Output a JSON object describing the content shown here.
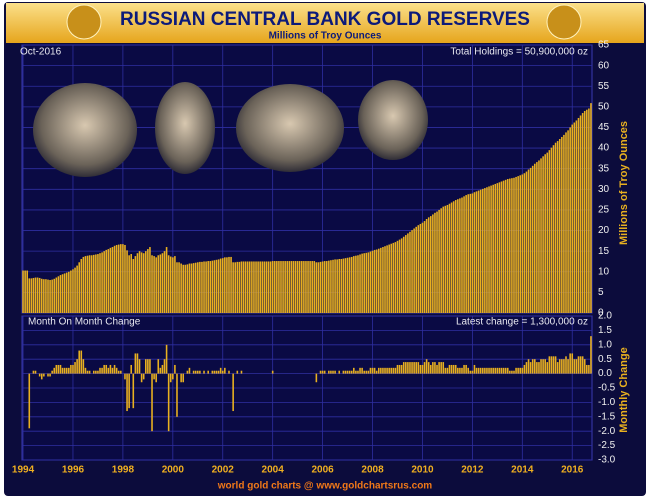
{
  "chart_data": [
    {
      "type": "bar",
      "title": "RUSSIAN CENTRAL BANK GOLD RESERVES",
      "subtitle": "Millions of Troy Ounces",
      "y_label": "Millions of Troy Ounces",
      "date_note": "Oct-2016",
      "total_note": "Total Holdings = 50,900,000 oz",
      "color": "#e8b020",
      "grid": true,
      "categories": [
        "1994",
        null,
        null,
        null,
        null,
        null,
        null,
        null,
        null,
        null,
        null,
        null,
        null,
        null,
        null,
        null,
        null,
        null,
        null,
        null,
        null,
        null,
        null,
        null,
        "1996",
        null,
        null,
        null,
        null,
        null,
        null,
        null,
        null,
        null,
        null,
        null,
        null,
        null,
        null,
        null,
        null,
        null,
        null,
        null,
        null,
        null,
        null,
        null,
        "1998",
        null,
        null,
        null,
        null,
        null,
        null,
        null,
        null,
        null,
        null,
        null,
        null,
        null,
        null,
        null,
        null,
        null,
        null,
        null,
        null,
        null,
        null,
        null,
        "2000",
        null,
        null,
        null,
        null,
        null,
        null,
        null,
        null,
        null,
        null,
        null,
        null,
        null,
        null,
        null,
        null,
        null,
        null,
        null,
        null,
        null,
        null,
        null,
        "2002",
        null,
        null,
        null,
        null,
        null,
        null,
        null,
        null,
        null,
        null,
        null,
        null,
        null,
        null,
        null,
        null,
        null,
        null,
        null,
        null,
        null,
        null,
        null,
        "2004",
        null,
        null,
        null,
        null,
        null,
        null,
        null,
        null,
        null,
        null,
        null,
        null,
        null,
        null,
        null,
        null,
        null,
        null,
        null,
        null,
        null,
        null,
        null,
        "2006",
        null,
        null,
        null,
        null,
        null,
        null,
        null,
        null,
        null,
        null,
        null,
        null,
        null,
        null,
        null,
        null,
        null,
        null,
        null,
        null,
        null,
        null,
        null,
        "2008",
        null,
        null,
        null,
        null,
        null,
        null,
        null,
        null,
        null,
        null,
        null,
        null,
        null,
        null,
        null,
        null,
        null,
        null,
        null,
        null,
        null,
        null,
        null,
        "2010",
        null,
        null,
        null,
        null,
        null,
        null,
        null,
        null,
        null,
        null,
        null,
        null,
        null,
        null,
        null,
        null,
        null,
        null,
        null,
        null,
        null,
        null,
        null,
        "2012",
        null,
        null,
        null,
        null,
        null,
        null,
        null,
        null,
        null,
        null,
        null,
        null,
        null,
        null,
        null,
        null,
        null,
        null,
        null,
        null,
        null,
        null,
        null,
        "2014",
        null,
        null,
        null,
        null,
        null,
        null,
        null,
        null,
        null,
        null,
        null,
        null,
        null,
        null,
        null,
        null,
        null,
        null,
        null,
        null,
        null,
        null,
        null,
        "2016",
        null,
        null,
        null,
        null,
        null,
        null,
        null,
        null,
        null
      ],
      "values": [
        10.3,
        10.3,
        10.3,
        8.4,
        8.4,
        8.5,
        8.6,
        8.6,
        8.5,
        8.3,
        8.2,
        8.2,
        8.1,
        8.0,
        8.1,
        8.3,
        8.6,
        8.9,
        9.2,
        9.4,
        9.6,
        9.8,
        10.0,
        10.3,
        10.6,
        11.0,
        11.5,
        12.3,
        13.1,
        13.6,
        13.8,
        13.9,
        14.0,
        14.0,
        14.1,
        14.2,
        14.3,
        14.5,
        14.7,
        15.0,
        15.3,
        15.5,
        15.8,
        16.0,
        16.3,
        16.5,
        16.6,
        16.7,
        16.7,
        16.5,
        15.2,
        14.0,
        14.3,
        13.1,
        13.8,
        14.5,
        15.0,
        14.7,
        14.5,
        15.0,
        15.5,
        16.0,
        14.0,
        13.8,
        13.5,
        14.0,
        14.2,
        14.5,
        15.0,
        16.0,
        14.0,
        13.7,
        13.5,
        13.8,
        12.3,
        12.3,
        12.0,
        11.7,
        11.7,
        11.8,
        12.0,
        12.0,
        12.1,
        12.2,
        12.3,
        12.4,
        12.4,
        12.5,
        12.5,
        12.6,
        12.6,
        12.7,
        12.8,
        12.9,
        13.0,
        13.2,
        13.3,
        13.5,
        13.5,
        13.6,
        13.6,
        12.3,
        12.3,
        12.4,
        12.4,
        12.5,
        12.5,
        12.5,
        12.5,
        12.5,
        12.5,
        12.5,
        12.5,
        12.5,
        12.5,
        12.5,
        12.5,
        12.5,
        12.5,
        12.5,
        12.6,
        12.6,
        12.6,
        12.6,
        12.6,
        12.6,
        12.6,
        12.6,
        12.6,
        12.6,
        12.6,
        12.6,
        12.6,
        12.6,
        12.6,
        12.6,
        12.6,
        12.6,
        12.6,
        12.6,
        12.6,
        12.3,
        12.3,
        12.4,
        12.5,
        12.6,
        12.6,
        12.7,
        12.8,
        12.9,
        13.0,
        13.0,
        13.1,
        13.1,
        13.2,
        13.3,
        13.4,
        13.5,
        13.6,
        13.8,
        13.9,
        14.0,
        14.2,
        14.4,
        14.5,
        14.6,
        14.7,
        14.9,
        15.1,
        15.3,
        15.4,
        15.6,
        15.8,
        16.0,
        16.2,
        16.4,
        16.6,
        16.8,
        17.0,
        17.2,
        17.5,
        17.8,
        18.1,
        18.5,
        18.9,
        19.3,
        19.7,
        20.1,
        20.5,
        20.9,
        21.3,
        21.6,
        21.9,
        22.3,
        22.8,
        23.2,
        23.5,
        23.9,
        24.3,
        24.6,
        25.0,
        25.4,
        25.8,
        26.0,
        26.2,
        26.5,
        26.8,
        27.1,
        27.4,
        27.6,
        27.8,
        28.0,
        28.3,
        28.6,
        28.8,
        28.9,
        29.0,
        29.3,
        29.5,
        29.7,
        29.9,
        30.1,
        30.3,
        30.5,
        30.7,
        30.9,
        31.1,
        31.3,
        31.5,
        31.7,
        31.9,
        32.1,
        32.3,
        32.5,
        32.6,
        32.7,
        32.8,
        33.0,
        33.2,
        33.4,
        33.6,
        33.9,
        34.3,
        34.8,
        35.2,
        35.7,
        36.2,
        36.6,
        37.0,
        37.5,
        38.0,
        38.5,
        38.9,
        39.5,
        40.1,
        40.7,
        41.3,
        41.7,
        42.2,
        42.7,
        43.2,
        43.8,
        44.3,
        45.0,
        45.7,
        46.2,
        46.7,
        47.3,
        47.9,
        48.5,
        49.0,
        49.3,
        49.6,
        50.9
      ],
      "ylim": [
        0,
        65
      ],
      "yticks": [
        0,
        5,
        10,
        15,
        20,
        25,
        30,
        35,
        40,
        45,
        50,
        55,
        60,
        65
      ]
    },
    {
      "type": "bar",
      "title": "Month On Month Change",
      "total_note": "Latest change = 1,300,000 oz",
      "y_label": "Monthly Change",
      "color": "#e8b020",
      "grid": true,
      "values": [
        0,
        0,
        0,
        -1.9,
        0,
        0.1,
        0.1,
        0,
        -0.1,
        -0.2,
        -0.1,
        0,
        -0.1,
        -0.1,
        0.1,
        0.2,
        0.3,
        0.3,
        0.3,
        0.2,
        0.2,
        0.2,
        0.2,
        0.3,
        0.3,
        0.4,
        0.5,
        0.8,
        0.8,
        0.5,
        0.2,
        0.1,
        0.1,
        0,
        0.1,
        0.1,
        0.1,
        0.2,
        0.2,
        0.3,
        0.3,
        0.2,
        0.3,
        0.2,
        0.3,
        0.2,
        0.1,
        0.1,
        0,
        -0.2,
        -1.3,
        -1.2,
        0.3,
        -1.2,
        0.7,
        0.7,
        0.5,
        -0.3,
        -0.2,
        0.5,
        0.5,
        0.5,
        -2.0,
        -0.2,
        -0.3,
        0.5,
        0.2,
        0.3,
        0.5,
        1.0,
        -2.0,
        -0.3,
        -0.2,
        0.3,
        -1.5,
        0,
        -0.3,
        -0.3,
        0,
        0.1,
        0.2,
        0,
        0.1,
        0.1,
        0.1,
        0.1,
        0,
        0.1,
        0,
        0.1,
        0,
        0.1,
        0.1,
        0.1,
        0.1,
        0.2,
        0.1,
        0.2,
        0,
        0.1,
        0,
        -1.3,
        0,
        0.1,
        0,
        0.1,
        0,
        0,
        0,
        0,
        0,
        0,
        0,
        0,
        0,
        0,
        0,
        0,
        0,
        0,
        0.1,
        0,
        0,
        0,
        0,
        0,
        0,
        0,
        0,
        0,
        0,
        0,
        0,
        0,
        0,
        0,
        0,
        0,
        0,
        0,
        0,
        -0.3,
        0,
        0.1,
        0.1,
        0.1,
        0,
        0.1,
        0.1,
        0.1,
        0.1,
        0,
        0.1,
        0,
        0.1,
        0.1,
        0.1,
        0.1,
        0.1,
        0.2,
        0.1,
        0.1,
        0.2,
        0.2,
        0.1,
        0.1,
        0.1,
        0.2,
        0.2,
        0.2,
        0.1,
        0.2,
        0.2,
        0.2,
        0.2,
        0.2,
        0.2,
        0.2,
        0.2,
        0.2,
        0.3,
        0.3,
        0.3,
        0.4,
        0.4,
        0.4,
        0.4,
        0.4,
        0.4,
        0.4,
        0.4,
        0.3,
        0.3,
        0.4,
        0.5,
        0.4,
        0.3,
        0.4,
        0.4,
        0.3,
        0.4,
        0.4,
        0.4,
        0.2,
        0.2,
        0.3,
        0.3,
        0.3,
        0.3,
        0.2,
        0.2,
        0.2,
        0.3,
        0.3,
        0.2,
        0.1,
        0.1,
        0.3,
        0.2,
        0.2,
        0.2,
        0.2,
        0.2,
        0.2,
        0.2,
        0.2,
        0.2,
        0.2,
        0.2,
        0.2,
        0.2,
        0.2,
        0.2,
        0.2,
        0.1,
        0.1,
        0.1,
        0.2,
        0.2,
        0.2,
        0.2,
        0.3,
        0.4,
        0.5,
        0.4,
        0.5,
        0.5,
        0.4,
        0.4,
        0.5,
        0.5,
        0.5,
        0.4,
        0.6,
        0.6,
        0.6,
        0.6,
        0.4,
        0.5,
        0.5,
        0.5,
        0.6,
        0.5,
        0.7,
        0.7,
        0.5,
        0.5,
        0.6,
        0.6,
        0.6,
        0.5,
        0.3,
        0.3,
        1.3
      ],
      "ylim": [
        -3,
        2
      ],
      "yticks": [
        {
          "value": 2,
          "label": "2.0"
        },
        1.5,
        {
          "value": 1,
          "label": "1.0"
        },
        0.5,
        {
          "value": 0,
          "label": "0.0"
        },
        -0.5,
        {
          "value": -1,
          "label": "-1.0"
        },
        -1.5,
        {
          "value": -2,
          "label": "-2.0"
        },
        -2.5,
        {
          "value": -3,
          "label": "-3.0"
        }
      ]
    }
  ],
  "footer": "world gold charts @ www.goldchartsrus.com"
}
